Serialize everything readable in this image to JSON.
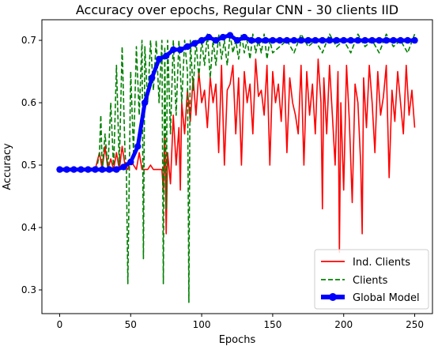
{
  "chart_data": {
    "type": "line",
    "title": "Accuracy over epochs, Regular CNN - 30 clients IID",
    "xlabel": "Epochs",
    "ylabel": "Accuracy",
    "xlim": [
      -12.5,
      262.5
    ],
    "ylim": [
      0.262,
      0.733
    ],
    "xticks": [
      0,
      50,
      100,
      150,
      200,
      250
    ],
    "yticks": [
      0.3,
      0.4,
      0.5,
      0.6,
      0.7
    ],
    "grid": false,
    "legend": "lower-right",
    "series": [
      {
        "name": "Ind. Clients",
        "style": "solid",
        "color": "#ff0000",
        "x": [
          0,
          10,
          20,
          25,
          28,
          30,
          32,
          34,
          36,
          38,
          40,
          42,
          44,
          46,
          48,
          50,
          52,
          54,
          56,
          58,
          60,
          62,
          64,
          66,
          68,
          70,
          72,
          73,
          74,
          75,
          76,
          78,
          80,
          82,
          84,
          85,
          86,
          88,
          90,
          92,
          94,
          96,
          98,
          100,
          102,
          104,
          106,
          108,
          110,
          112,
          114,
          116,
          118,
          120,
          122,
          124,
          126,
          128,
          130,
          132,
          134,
          136,
          138,
          140,
          142,
          144,
          146,
          148,
          150,
          152,
          154,
          156,
          158,
          160,
          162,
          164,
          166,
          168,
          170,
          172,
          174,
          176,
          178,
          180,
          182,
          184,
          185,
          186,
          188,
          190,
          192,
          194,
          196,
          197,
          198,
          200,
          202,
          204,
          206,
          208,
          210,
          212,
          213,
          214,
          216,
          218,
          220,
          222,
          224,
          226,
          228,
          230,
          232,
          234,
          236,
          238,
          240,
          242,
          244,
          246,
          248,
          250
        ],
        "values": [
          0.493,
          0.493,
          0.493,
          0.493,
          0.52,
          0.493,
          0.53,
          0.493,
          0.51,
          0.493,
          0.52,
          0.493,
          0.53,
          0.5,
          0.493,
          0.51,
          0.5,
          0.493,
          0.52,
          0.493,
          0.493,
          0.493,
          0.5,
          0.493,
          0.493,
          0.493,
          0.493,
          0.46,
          0.55,
          0.39,
          0.52,
          0.47,
          0.58,
          0.5,
          0.56,
          0.46,
          0.6,
          0.55,
          0.62,
          0.57,
          0.64,
          0.58,
          0.65,
          0.6,
          0.62,
          0.56,
          0.64,
          0.6,
          0.63,
          0.52,
          0.66,
          0.5,
          0.62,
          0.63,
          0.66,
          0.55,
          0.64,
          0.5,
          0.65,
          0.6,
          0.63,
          0.55,
          0.67,
          0.61,
          0.62,
          0.58,
          0.66,
          0.5,
          0.65,
          0.6,
          0.63,
          0.57,
          0.66,
          0.52,
          0.64,
          0.6,
          0.58,
          0.55,
          0.66,
          0.5,
          0.65,
          0.58,
          0.63,
          0.55,
          0.67,
          0.6,
          0.43,
          0.64,
          0.55,
          0.66,
          0.58,
          0.5,
          0.65,
          0.36,
          0.6,
          0.46,
          0.66,
          0.57,
          0.44,
          0.63,
          0.6,
          0.5,
          0.39,
          0.64,
          0.56,
          0.66,
          0.6,
          0.52,
          0.65,
          0.58,
          0.61,
          0.66,
          0.48,
          0.62,
          0.57,
          0.65,
          0.6,
          0.55,
          0.66,
          0.58,
          0.62,
          0.56
        ]
      },
      {
        "name": "Clients",
        "style": "dashed",
        "color": "#008000",
        "x": [
          0,
          10,
          20,
          26,
          28,
          29,
          30,
          32,
          34,
          36,
          38,
          40,
          42,
          44,
          46,
          47,
          48,
          50,
          52,
          54,
          56,
          58,
          59,
          60,
          62,
          64,
          66,
          68,
          70,
          72,
          73,
          74,
          75,
          76,
          78,
          80,
          82,
          84,
          86,
          88,
          90,
          91,
          92,
          94,
          96,
          98,
          100,
          102,
          104,
          106,
          108,
          110,
          112,
          114,
          116,
          118,
          120,
          122,
          124,
          126,
          128,
          130,
          132,
          134,
          136,
          138,
          140,
          142,
          144,
          146,
          148,
          150,
          155,
          160,
          165,
          170,
          175,
          180,
          185,
          190,
          195,
          200,
          205,
          210,
          215,
          220,
          225,
          230,
          235,
          240,
          245,
          250
        ],
        "values": [
          0.493,
          0.493,
          0.493,
          0.493,
          0.52,
          0.58,
          0.493,
          0.55,
          0.493,
          0.6,
          0.493,
          0.66,
          0.5,
          0.69,
          0.52,
          0.49,
          0.31,
          0.65,
          0.52,
          0.69,
          0.58,
          0.7,
          0.35,
          0.69,
          0.6,
          0.7,
          0.62,
          0.7,
          0.6,
          0.7,
          0.31,
          0.69,
          0.43,
          0.7,
          0.55,
          0.7,
          0.58,
          0.7,
          0.6,
          0.7,
          0.65,
          0.28,
          0.7,
          0.62,
          0.7,
          0.64,
          0.7,
          0.66,
          0.71,
          0.64,
          0.7,
          0.66,
          0.71,
          0.67,
          0.7,
          0.66,
          0.71,
          0.68,
          0.7,
          0.67,
          0.71,
          0.68,
          0.7,
          0.67,
          0.71,
          0.68,
          0.7,
          0.68,
          0.71,
          0.67,
          0.7,
          0.68,
          0.69,
          0.7,
          0.68,
          0.71,
          0.69,
          0.7,
          0.68,
          0.71,
          0.69,
          0.7,
          0.68,
          0.71,
          0.69,
          0.7,
          0.68,
          0.71,
          0.69,
          0.7,
          0.68,
          0.71
        ]
      },
      {
        "name": "Global Model",
        "style": "solid-markers",
        "color": "#0000ff",
        "x": [
          0,
          5,
          10,
          15,
          20,
          25,
          30,
          35,
          40,
          45,
          50,
          55,
          60,
          65,
          70,
          75,
          80,
          85,
          90,
          95,
          100,
          105,
          110,
          115,
          120,
          125,
          130,
          135,
          140,
          145,
          150,
          155,
          160,
          165,
          170,
          175,
          180,
          185,
          190,
          195,
          200,
          205,
          210,
          215,
          220,
          225,
          230,
          235,
          240,
          245,
          250
        ],
        "values": [
          0.493,
          0.493,
          0.493,
          0.493,
          0.493,
          0.493,
          0.493,
          0.493,
          0.493,
          0.497,
          0.505,
          0.53,
          0.6,
          0.64,
          0.67,
          0.675,
          0.685,
          0.685,
          0.69,
          0.695,
          0.7,
          0.705,
          0.7,
          0.705,
          0.708,
          0.7,
          0.705,
          0.7,
          0.7,
          0.7,
          0.7,
          0.7,
          0.7,
          0.7,
          0.7,
          0.7,
          0.7,
          0.7,
          0.7,
          0.7,
          0.7,
          0.7,
          0.7,
          0.7,
          0.7,
          0.7,
          0.7,
          0.7,
          0.7,
          0.7,
          0.7
        ]
      }
    ]
  }
}
